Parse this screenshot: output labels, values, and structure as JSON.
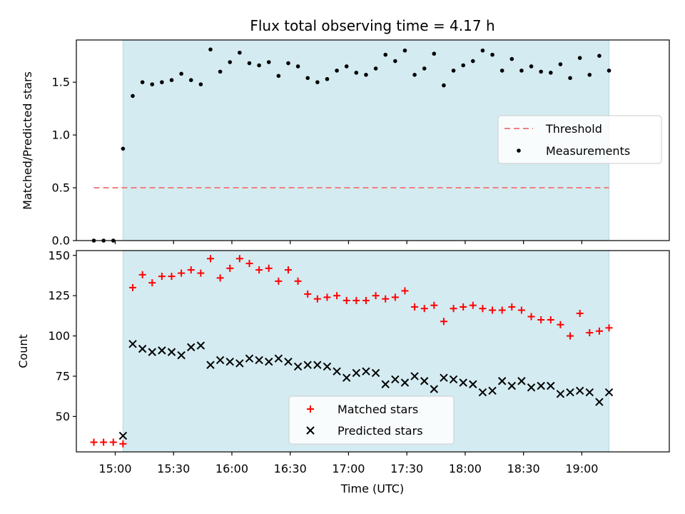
{
  "figure": {
    "title": "Flux total observing time = 4.17 h",
    "xlabel": "Time (UTC)"
  },
  "chart_data": [
    {
      "type": "scatter",
      "panel": "top",
      "ylabel": "Matched/Predicted stars",
      "ylim": [
        0,
        1.9
      ],
      "yticks": [
        0.0,
        0.5,
        1.0,
        1.5
      ],
      "ytick_labels": [
        "0.0",
        "0.5",
        "1.0",
        "1.5"
      ],
      "xlim": [
        "14:40",
        "19:45"
      ],
      "observing_window": [
        "15:04",
        "19:14"
      ],
      "observing_window_color": "#d4ebf1",
      "legend": {
        "placement": "center-right",
        "entries": [
          "Threshold",
          "Measurements"
        ]
      },
      "threshold": {
        "name": "Threshold",
        "value": 0.5,
        "x_range": [
          "14:49",
          "19:14"
        ],
        "color": "#f08080",
        "style": "dashed"
      },
      "series": [
        {
          "name": "Measurements",
          "marker": "dot",
          "color": "#000000",
          "x": [
            "14:49",
            "14:54",
            "14:59",
            "15:04",
            "15:09",
            "15:14",
            "15:19",
            "15:24",
            "15:29",
            "15:34",
            "15:39",
            "15:44",
            "15:49",
            "15:54",
            "15:59",
            "16:04",
            "16:09",
            "16:14",
            "16:19",
            "16:24",
            "16:29",
            "16:34",
            "16:39",
            "16:44",
            "16:49",
            "16:54",
            "16:59",
            "17:04",
            "17:09",
            "17:14",
            "17:19",
            "17:24",
            "17:29",
            "17:34",
            "17:39",
            "17:44",
            "17:49",
            "17:54",
            "17:59",
            "18:04",
            "18:09",
            "18:14",
            "18:19",
            "18:24",
            "18:29",
            "18:34",
            "18:39",
            "18:44",
            "18:49",
            "18:54",
            "18:59",
            "19:04",
            "19:09",
            "19:14"
          ],
          "y": [
            0.0,
            0.0,
            0.0,
            0.87,
            1.37,
            1.5,
            1.48,
            1.5,
            1.52,
            1.58,
            1.52,
            1.48,
            1.81,
            1.6,
            1.69,
            1.78,
            1.68,
            1.66,
            1.69,
            1.56,
            1.68,
            1.65,
            1.54,
            1.5,
            1.53,
            1.61,
            1.65,
            1.59,
            1.57,
            1.63,
            1.76,
            1.7,
            1.8,
            1.57,
            1.63,
            1.77,
            1.47,
            1.61,
            1.66,
            1.7,
            1.8,
            1.76,
            1.61,
            1.72,
            1.61,
            1.65,
            1.6,
            1.59,
            1.67,
            1.54,
            1.73,
            1.57,
            1.75,
            1.61
          ]
        }
      ]
    },
    {
      "type": "scatter",
      "panel": "bottom",
      "ylabel": "Count",
      "ylim": [
        28,
        153
      ],
      "yticks": [
        50,
        75,
        100,
        125,
        150
      ],
      "ytick_labels": [
        "50",
        "75",
        "100",
        "125",
        "150"
      ],
      "xlim": [
        "14:40",
        "19:45"
      ],
      "xticks": [
        "15:00",
        "15:30",
        "16:00",
        "16:30",
        "17:00",
        "17:30",
        "18:00",
        "18:30",
        "19:00"
      ],
      "xtick_labels": [
        "15:00",
        "15:30",
        "16:00",
        "16:30",
        "17:00",
        "17:30",
        "18:00",
        "18:30",
        "19:00"
      ],
      "observing_window": [
        "15:04",
        "19:14"
      ],
      "observing_window_color": "#d4ebf1",
      "legend": {
        "placement": "bottom-center",
        "entries": [
          "Matched stars",
          "Predicted stars"
        ]
      },
      "series": [
        {
          "name": "Matched stars",
          "marker": "plus",
          "color": "#ff0000",
          "x": [
            "14:49",
            "14:54",
            "14:59",
            "15:04",
            "15:09",
            "15:14",
            "15:19",
            "15:24",
            "15:29",
            "15:34",
            "15:39",
            "15:44",
            "15:49",
            "15:54",
            "15:59",
            "16:04",
            "16:09",
            "16:14",
            "16:19",
            "16:24",
            "16:29",
            "16:34",
            "16:39",
            "16:44",
            "16:49",
            "16:54",
            "16:59",
            "17:04",
            "17:09",
            "17:14",
            "17:19",
            "17:24",
            "17:29",
            "17:34",
            "17:39",
            "17:44",
            "17:49",
            "17:54",
            "17:59",
            "18:04",
            "18:09",
            "18:14",
            "18:19",
            "18:24",
            "18:29",
            "18:34",
            "18:39",
            "18:44",
            "18:49",
            "18:54",
            "18:59",
            "19:04",
            "19:09",
            "19:14"
          ],
          "y": [
            34,
            34,
            34,
            33,
            130,
            138,
            133,
            137,
            137,
            139,
            141,
            139,
            148,
            136,
            142,
            148,
            145,
            141,
            142,
            134,
            141,
            134,
            126,
            123,
            124,
            125,
            122,
            122,
            122,
            125,
            123,
            124,
            128,
            118,
            117,
            119,
            109,
            117,
            118,
            119,
            117,
            116,
            116,
            118,
            116,
            112,
            110,
            110,
            107,
            100,
            114,
            102,
            103,
            105
          ]
        },
        {
          "name": "Predicted stars",
          "marker": "x",
          "color": "#000000",
          "x": [
            "15:04",
            "15:09",
            "15:14",
            "15:19",
            "15:24",
            "15:29",
            "15:34",
            "15:39",
            "15:44",
            "15:49",
            "15:54",
            "15:59",
            "16:04",
            "16:09",
            "16:14",
            "16:19",
            "16:24",
            "16:29",
            "16:34",
            "16:39",
            "16:44",
            "16:49",
            "16:54",
            "16:59",
            "17:04",
            "17:09",
            "17:14",
            "17:19",
            "17:24",
            "17:29",
            "17:34",
            "17:39",
            "17:44",
            "17:49",
            "17:54",
            "17:59",
            "18:04",
            "18:09",
            "18:14",
            "18:19",
            "18:24",
            "18:29",
            "18:34",
            "18:39",
            "18:44",
            "18:49",
            "18:54",
            "18:59",
            "19:04",
            "19:09",
            "19:14"
          ],
          "y": [
            38,
            95,
            92,
            90,
            91,
            90,
            88,
            93,
            94,
            82,
            85,
            84,
            83,
            86,
            85,
            84,
            86,
            84,
            81,
            82,
            82,
            81,
            78,
            74,
            77,
            78,
            77,
            70,
            73,
            71,
            75,
            72,
            67,
            74,
            73,
            71,
            70,
            65,
            66,
            72,
            69,
            72,
            68,
            69,
            69,
            64,
            65,
            66,
            65,
            59,
            65
          ]
        }
      ]
    }
  ]
}
